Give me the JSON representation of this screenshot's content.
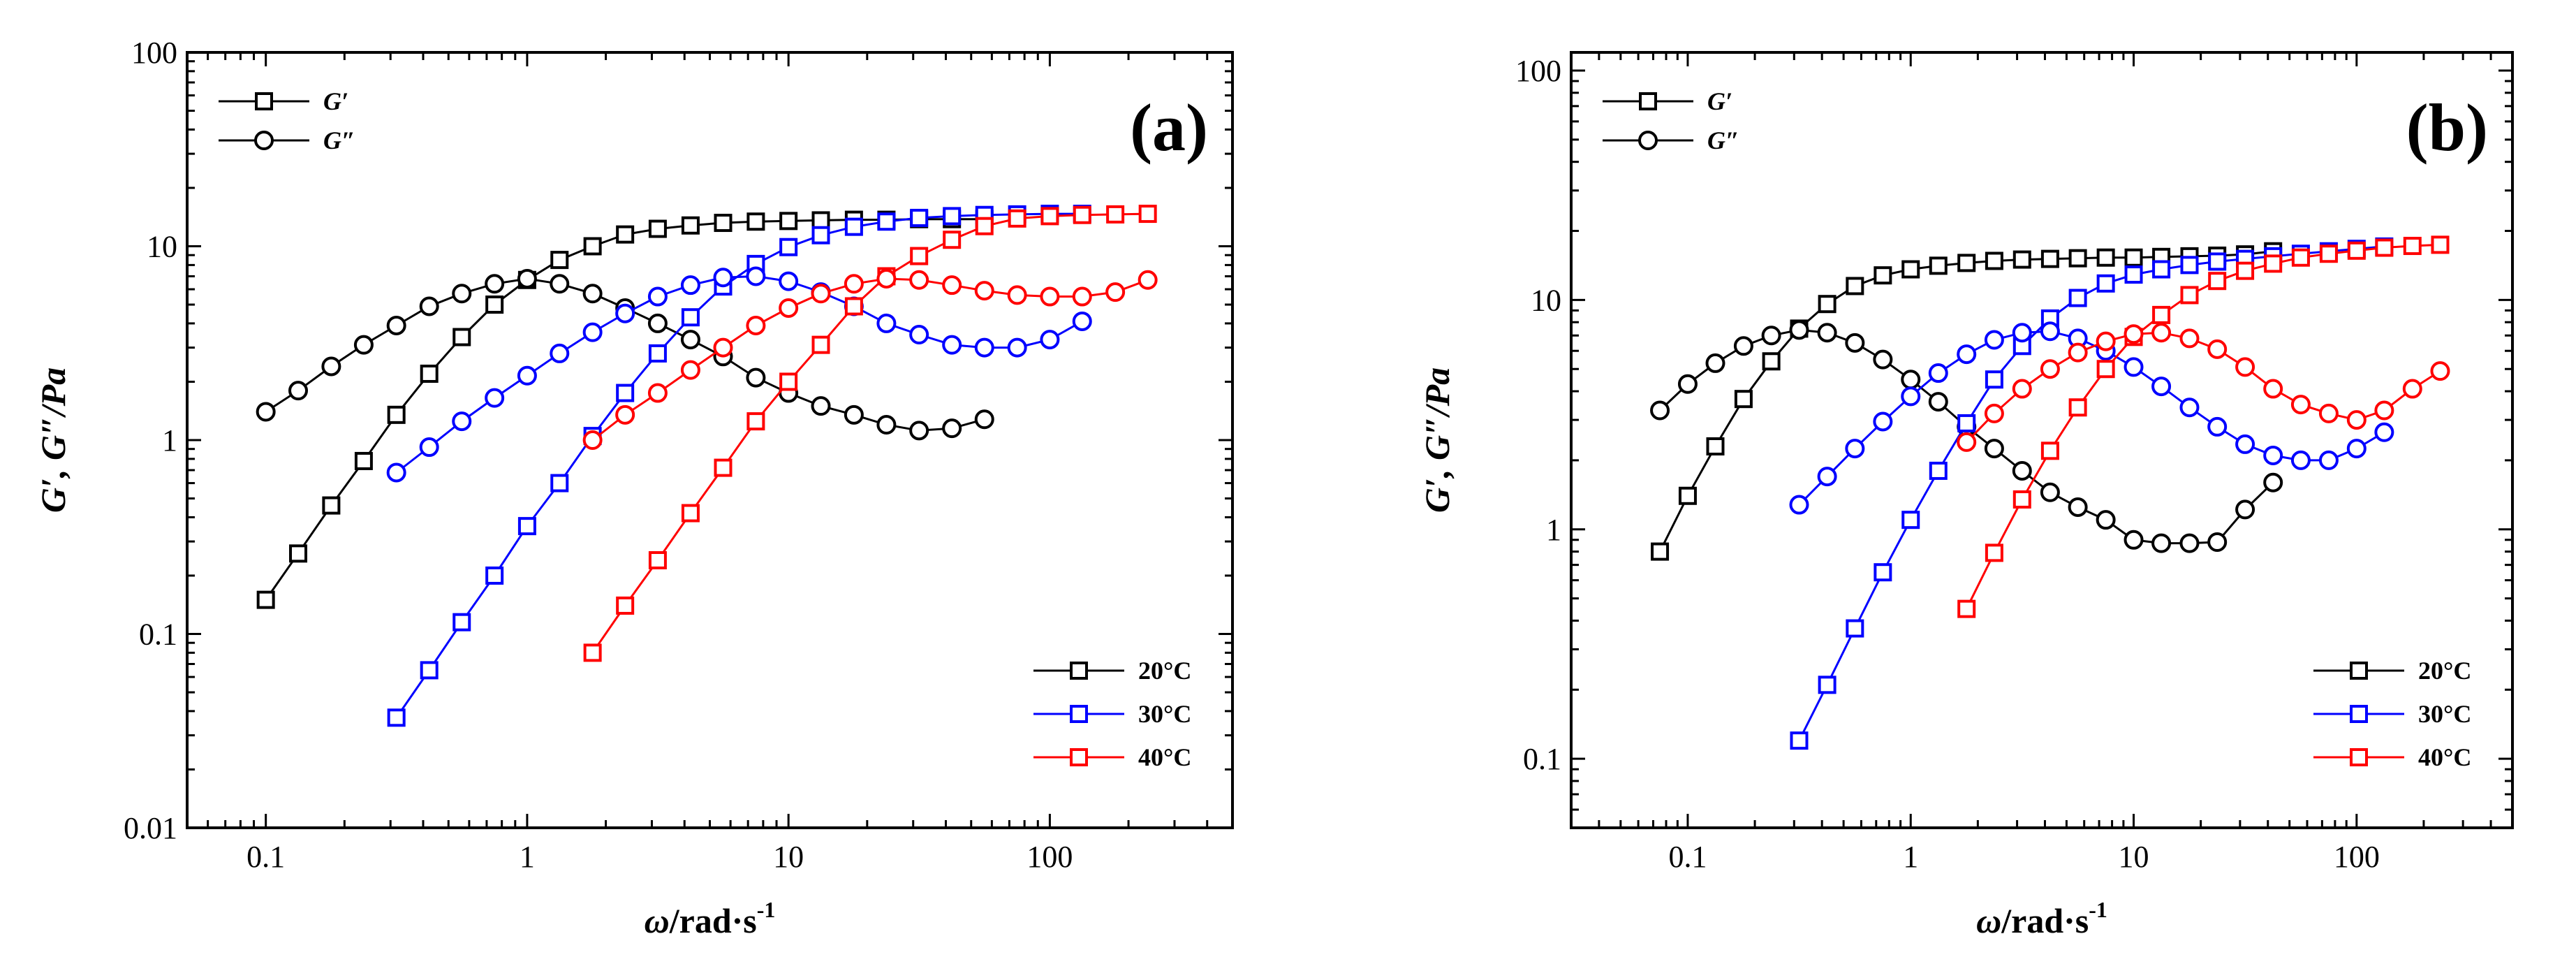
{
  "figure_title": "",
  "chart_data": [
    {
      "type": "scatter",
      "panel_label": "(a)",
      "xscale": "log",
      "yscale": "log",
      "xlim": [
        0.05,
        500
      ],
      "ylim": [
        0.01,
        100
      ],
      "xticks": [
        "0.1",
        "1",
        "10",
        "100"
      ],
      "yticks": [
        "0.01",
        "0.1",
        "1",
        "10",
        "100"
      ],
      "xlabel_main": "ω",
      "xlabel_rest": "/rad·s",
      "xlabel_sup": "-1",
      "ylabel": "G′, G″/Pa",
      "marker_legend": [
        {
          "symbol": "square",
          "label": "G′"
        },
        {
          "symbol": "circle",
          "label": "G″"
        }
      ],
      "temperature_legend": [
        {
          "label": "20°C",
          "color": "#000000"
        },
        {
          "label": "30°C",
          "color": "#0000ff"
        },
        {
          "label": "40°C",
          "color": "#ff0000"
        }
      ],
      "legend_position": "bottom-right",
      "series": [
        {
          "name": "G′ 20°C",
          "color": "#000000",
          "marker": "square",
          "x": [
            0.1,
            0.133,
            0.178,
            0.237,
            0.316,
            0.422,
            0.562,
            0.75,
            1.0,
            1.33,
            1.78,
            2.37,
            3.16,
            4.22,
            5.62,
            7.5,
            10,
            13.3,
            17.8,
            23.7,
            31.6,
            42.2,
            56.2
          ],
          "y": [
            0.15,
            0.26,
            0.46,
            0.78,
            1.35,
            2.2,
            3.4,
            5.0,
            6.7,
            8.5,
            10.0,
            11.5,
            12.3,
            12.8,
            13.2,
            13.4,
            13.5,
            13.6,
            13.7,
            13.7,
            13.8,
            13.8,
            13.8
          ]
        },
        {
          "name": "G″ 20°C",
          "color": "#000000",
          "marker": "circle",
          "x": [
            0.1,
            0.133,
            0.178,
            0.237,
            0.316,
            0.422,
            0.562,
            0.75,
            1.0,
            1.33,
            1.78,
            2.37,
            3.16,
            4.22,
            5.62,
            7.5,
            10,
            13.3,
            17.8,
            23.7,
            31.6,
            42.2,
            56.2
          ],
          "y": [
            1.4,
            1.8,
            2.4,
            3.1,
            3.9,
            4.9,
            5.7,
            6.4,
            6.8,
            6.4,
            5.7,
            4.8,
            4.0,
            3.3,
            2.7,
            2.1,
            1.75,
            1.5,
            1.35,
            1.2,
            1.12,
            1.15,
            1.28
          ]
        },
        {
          "name": "G′ 30°C",
          "color": "#0000ff",
          "marker": "square",
          "x": [
            0.316,
            0.422,
            0.562,
            0.75,
            1.0,
            1.33,
            1.78,
            2.37,
            3.16,
            4.22,
            5.62,
            7.5,
            10,
            13.3,
            17.8,
            23.7,
            31.6,
            42.2,
            56.2,
            75,
            100,
            133
          ],
          "y": [
            0.037,
            0.065,
            0.115,
            0.2,
            0.36,
            0.6,
            1.05,
            1.75,
            2.8,
            4.3,
            6.2,
            8.1,
            9.9,
            11.4,
            12.6,
            13.4,
            14.0,
            14.3,
            14.5,
            14.6,
            14.7,
            14.7
          ]
        },
        {
          "name": "G″ 30°C",
          "color": "#0000ff",
          "marker": "circle",
          "x": [
            0.316,
            0.422,
            0.562,
            0.75,
            1.0,
            1.33,
            1.78,
            2.37,
            3.16,
            4.22,
            5.62,
            7.5,
            10,
            13.3,
            17.8,
            23.7,
            31.6,
            42.2,
            56.2,
            75,
            100,
            133
          ],
          "y": [
            0.68,
            0.92,
            1.25,
            1.65,
            2.15,
            2.8,
            3.6,
            4.5,
            5.5,
            6.3,
            6.9,
            7.0,
            6.6,
            5.8,
            4.9,
            4.0,
            3.5,
            3.1,
            3.0,
            3.0,
            3.3,
            4.1
          ]
        },
        {
          "name": "G′ 40°C",
          "color": "#ff0000",
          "marker": "square",
          "x": [
            1.78,
            2.37,
            3.16,
            4.22,
            5.62,
            7.5,
            10,
            13.3,
            17.8,
            23.7,
            31.6,
            42.2,
            56.2,
            75,
            100,
            133,
            178,
            237
          ],
          "y": [
            0.08,
            0.14,
            0.24,
            0.42,
            0.72,
            1.25,
            2.0,
            3.1,
            4.9,
            7.0,
            8.9,
            10.8,
            12.7,
            13.9,
            14.3,
            14.5,
            14.6,
            14.7
          ]
        },
        {
          "name": "G″ 40°C",
          "color": "#ff0000",
          "marker": "circle",
          "x": [
            1.78,
            2.37,
            3.16,
            4.22,
            5.62,
            7.5,
            10,
            13.3,
            17.8,
            23.7,
            31.6,
            42.2,
            56.2,
            75,
            100,
            133,
            178,
            237
          ],
          "y": [
            1.0,
            1.35,
            1.75,
            2.3,
            3.0,
            3.9,
            4.8,
            5.7,
            6.4,
            6.8,
            6.7,
            6.3,
            5.9,
            5.6,
            5.5,
            5.5,
            5.8,
            6.7
          ]
        }
      ]
    },
    {
      "type": "scatter",
      "panel_label": "(b)",
      "xscale": "log",
      "yscale": "log",
      "xlim": [
        0.03,
        500
      ],
      "ylim": [
        0.05,
        120
      ],
      "xticks": [
        "0.1",
        "1",
        "10",
        "100"
      ],
      "yticks": [
        "0.1",
        "1",
        "10",
        "100"
      ],
      "xlabel_main": "ω",
      "xlabel_rest": "/rad·s",
      "xlabel_sup": "-1",
      "ylabel": "G′, G″/Pa",
      "marker_legend": [
        {
          "symbol": "square",
          "label": "G′"
        },
        {
          "symbol": "circle",
          "label": "G″"
        }
      ],
      "temperature_legend": [
        {
          "label": "20°C",
          "color": "#000000"
        },
        {
          "label": "30°C",
          "color": "#0000ff"
        },
        {
          "label": "40°C",
          "color": "#ff0000"
        }
      ],
      "legend_position": "bottom-right",
      "series": [
        {
          "name": "G′ 20°C",
          "color": "#000000",
          "marker": "square",
          "x": [
            0.075,
            0.1,
            0.133,
            0.178,
            0.237,
            0.316,
            0.422,
            0.562,
            0.75,
            1.0,
            1.33,
            1.78,
            2.37,
            3.16,
            4.22,
            5.62,
            7.5,
            10,
            13.3,
            17.8,
            23.7,
            31.6,
            42.2
          ],
          "y": [
            0.8,
            1.4,
            2.3,
            3.7,
            5.4,
            7.5,
            9.6,
            11.5,
            12.8,
            13.6,
            14.1,
            14.5,
            14.8,
            15.0,
            15.1,
            15.2,
            15.3,
            15.3,
            15.4,
            15.5,
            15.6,
            15.8,
            16.3
          ]
        },
        {
          "name": "G″ 20°C",
          "color": "#000000",
          "marker": "circle",
          "x": [
            0.075,
            0.1,
            0.133,
            0.178,
            0.237,
            0.316,
            0.422,
            0.562,
            0.75,
            1.0,
            1.33,
            1.78,
            2.37,
            3.16,
            4.22,
            5.62,
            7.5,
            10,
            13.3,
            17.8,
            23.7,
            31.6,
            42.2
          ],
          "y": [
            3.3,
            4.3,
            5.3,
            6.3,
            7.0,
            7.4,
            7.2,
            6.5,
            5.5,
            4.5,
            3.6,
            2.8,
            2.25,
            1.8,
            1.45,
            1.25,
            1.1,
            0.9,
            0.87,
            0.87,
            0.88,
            1.22,
            1.6
          ]
        },
        {
          "name": "G′ 30°C",
          "color": "#0000ff",
          "marker": "square",
          "x": [
            0.316,
            0.422,
            0.562,
            0.75,
            1.0,
            1.33,
            1.78,
            2.37,
            3.16,
            4.22,
            5.62,
            7.5,
            10,
            13.3,
            17.8,
            23.7,
            31.6,
            42.2,
            56.2,
            75,
            100,
            133
          ],
          "y": [
            0.12,
            0.21,
            0.37,
            0.65,
            1.1,
            1.8,
            2.9,
            4.5,
            6.3,
            8.3,
            10.2,
            11.8,
            12.9,
            13.6,
            14.2,
            14.7,
            15.1,
            15.5,
            15.9,
            16.3,
            16.7,
            17.1
          ]
        },
        {
          "name": "G″ 30°C",
          "color": "#0000ff",
          "marker": "circle",
          "x": [
            0.316,
            0.422,
            0.562,
            0.75,
            1.0,
            1.33,
            1.78,
            2.37,
            3.16,
            4.22,
            5.62,
            7.5,
            10,
            13.3,
            17.8,
            23.7,
            31.6,
            42.2,
            56.2,
            75,
            100,
            133
          ],
          "y": [
            1.28,
            1.7,
            2.25,
            2.95,
            3.8,
            4.8,
            5.8,
            6.7,
            7.2,
            7.3,
            6.8,
            6.0,
            5.1,
            4.2,
            3.4,
            2.8,
            2.35,
            2.1,
            2.0,
            2.0,
            2.25,
            2.65
          ]
        },
        {
          "name": "G′ 40°C",
          "color": "#ff0000",
          "marker": "square",
          "x": [
            1.78,
            2.37,
            3.16,
            4.22,
            5.62,
            7.5,
            10,
            13.3,
            17.8,
            23.7,
            31.6,
            42.2,
            56.2,
            75,
            100,
            133,
            178,
            237
          ],
          "y": [
            0.45,
            0.79,
            1.35,
            2.2,
            3.4,
            5.0,
            6.9,
            8.6,
            10.5,
            12.1,
            13.4,
            14.4,
            15.3,
            15.9,
            16.4,
            16.9,
            17.2,
            17.4
          ]
        },
        {
          "name": "G″ 40°C",
          "color": "#ff0000",
          "marker": "circle",
          "x": [
            1.78,
            2.37,
            3.16,
            4.22,
            5.62,
            7.5,
            10,
            13.3,
            17.8,
            23.7,
            31.6,
            42.2,
            56.2,
            75,
            100,
            133,
            178,
            237
          ],
          "y": [
            2.4,
            3.2,
            4.1,
            5.0,
            5.9,
            6.6,
            7.1,
            7.2,
            6.8,
            6.1,
            5.1,
            4.1,
            3.5,
            3.2,
            3.0,
            3.3,
            4.1,
            4.9
          ]
        }
      ]
    }
  ]
}
